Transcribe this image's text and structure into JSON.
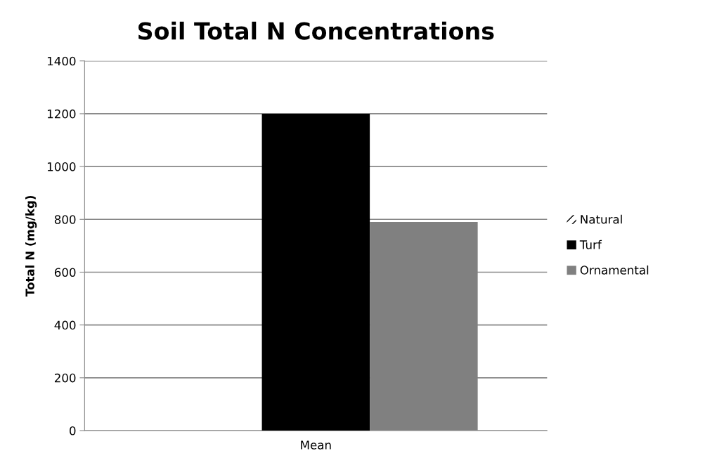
{
  "chart_data": {
    "type": "bar",
    "title": "Soil Total N Concentrations",
    "ylabel": "Total N (mg/kg)",
    "categories": [
      "Mean"
    ],
    "series": [
      {
        "name": "Natural",
        "color": "#000000",
        "values": [
          null
        ]
      },
      {
        "name": "Turf",
        "color": "#000000",
        "values": [
          1200
        ]
      },
      {
        "name": "Ornamental",
        "color": "#808080",
        "values": [
          790
        ]
      }
    ],
    "ylim": [
      0,
      1400
    ],
    "yticks": [
      0,
      200,
      400,
      600,
      800,
      1000,
      1200,
      1400
    ],
    "grid": "y",
    "legend": "right"
  }
}
